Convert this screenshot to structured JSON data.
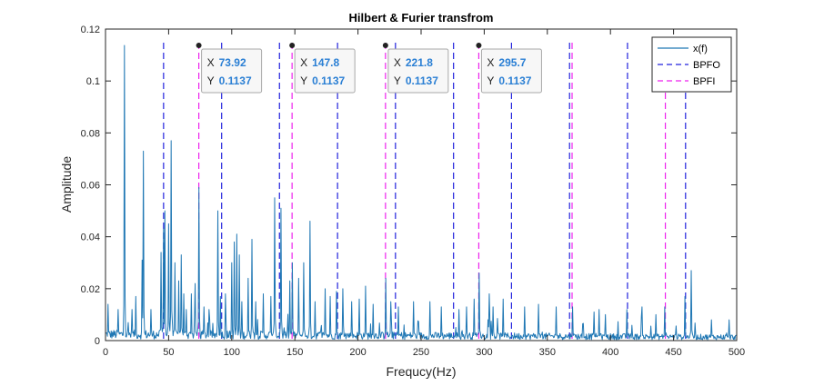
{
  "chart_data": {
    "type": "line",
    "title": "Hilbert & Furier transfrom",
    "xlabel": "Frequcy(Hz)",
    "ylabel": "Amplitude",
    "xlim": [
      0,
      500
    ],
    "ylim": [
      0,
      0.12
    ],
    "xticks": [
      "0",
      "50",
      "100",
      "150",
      "200",
      "250",
      "300",
      "350",
      "400",
      "450",
      "500"
    ],
    "yticks": [
      "0",
      "0.02",
      "0.04",
      "0.06",
      "0.08",
      "0.1",
      "0.12"
    ],
    "grid": false,
    "legend_position": "top-right",
    "legend": [
      "x(f)",
      "BPFO",
      "BPFI"
    ],
    "series": [
      {
        "name": "x(f)",
        "style": "solid",
        "color": "#1f77b4",
        "base_noise_level": 0.003,
        "peaks": [
          [
            2,
            0.014
          ],
          [
            10,
            0.012
          ],
          [
            15,
            0.1137
          ],
          [
            21,
            0.012
          ],
          [
            24,
            0.017
          ],
          [
            29,
            0.031
          ],
          [
            30,
            0.073
          ],
          [
            36,
            0.012
          ],
          [
            44,
            0.034
          ],
          [
            46,
            0.043
          ],
          [
            47,
            0.05
          ],
          [
            50,
            0.045
          ],
          [
            52,
            0.077
          ],
          [
            55,
            0.03
          ],
          [
            58,
            0.023
          ],
          [
            60,
            0.033
          ],
          [
            62,
            0.018
          ],
          [
            64,
            0.012
          ],
          [
            68,
            0.018
          ],
          [
            71,
            0.022
          ],
          [
            73.92,
            0.059
          ],
          [
            78,
            0.013
          ],
          [
            82,
            0.012
          ],
          [
            89,
            0.05
          ],
          [
            91,
            0.017
          ],
          [
            95,
            0.018
          ],
          [
            100,
            0.03
          ],
          [
            102,
            0.038
          ],
          [
            104,
            0.041
          ],
          [
            106,
            0.033
          ],
          [
            108,
            0.015
          ],
          [
            113,
            0.024
          ],
          [
            116,
            0.039
          ],
          [
            119,
            0.015
          ],
          [
            125,
            0.018
          ],
          [
            131,
            0.017
          ],
          [
            134,
            0.055
          ],
          [
            139,
            0.051
          ],
          [
            146,
            0.023
          ],
          [
            148,
            0.03
          ],
          [
            153,
            0.024
          ],
          [
            157,
            0.03
          ],
          [
            162,
            0.046
          ],
          [
            166,
            0.015
          ],
          [
            174,
            0.02
          ],
          [
            178,
            0.017
          ],
          [
            183,
            0.019
          ],
          [
            188,
            0.02
          ],
          [
            195,
            0.015
          ],
          [
            201,
            0.016
          ],
          [
            206,
            0.021
          ],
          [
            212,
            0.014
          ],
          [
            221.8,
            0.024
          ],
          [
            226,
            0.015
          ],
          [
            232,
            0.013
          ],
          [
            244,
            0.015
          ],
          [
            257,
            0.015
          ],
          [
            266,
            0.013
          ],
          [
            280,
            0.012
          ],
          [
            286,
            0.013
          ],
          [
            292,
            0.016
          ],
          [
            296,
            0.026
          ],
          [
            304,
            0.018
          ],
          [
            307,
            0.013
          ],
          [
            315,
            0.016
          ],
          [
            332,
            0.013
          ],
          [
            343,
            0.014
          ],
          [
            357,
            0.013
          ],
          [
            370,
            0.013
          ],
          [
            387,
            0.011
          ],
          [
            391,
            0.012
          ],
          [
            396,
            0.01
          ],
          [
            413,
            0.012
          ],
          [
            425,
            0.013
          ],
          [
            436,
            0.01
          ],
          [
            443,
            0.013
          ],
          [
            459,
            0.017
          ],
          [
            464,
            0.027
          ],
          [
            480,
            0.008
          ],
          [
            494,
            0.008
          ]
        ]
      },
      {
        "name": "BPFO",
        "style": "dashed",
        "color": "#2222dd",
        "x": [
          46,
          92,
          137.8,
          183.8,
          229.7,
          275.7,
          321.6,
          367.6,
          413.5,
          459.5
        ]
      },
      {
        "name": "BPFI",
        "style": "dashed",
        "color": "#ee22ee",
        "x": [
          73.92,
          147.8,
          221.8,
          295.7,
          369.6,
          443.5
        ]
      }
    ],
    "datatips": [
      {
        "x_label": "X",
        "x_value": "73.92",
        "y_label": "Y",
        "y_value": "0.1137",
        "x": 73.92,
        "y": 0.1137
      },
      {
        "x_label": "X",
        "x_value": "147.8",
        "y_label": "Y",
        "y_value": "0.1137",
        "x": 147.8,
        "y": 0.1137
      },
      {
        "x_label": "X",
        "x_value": "221.8",
        "y_label": "Y",
        "y_value": "0.1137",
        "x": 221.8,
        "y": 0.1137
      },
      {
        "x_label": "X",
        "x_value": "295.7",
        "y_label": "Y",
        "y_value": "0.1137",
        "x": 295.7,
        "y": 0.1137
      }
    ]
  }
}
